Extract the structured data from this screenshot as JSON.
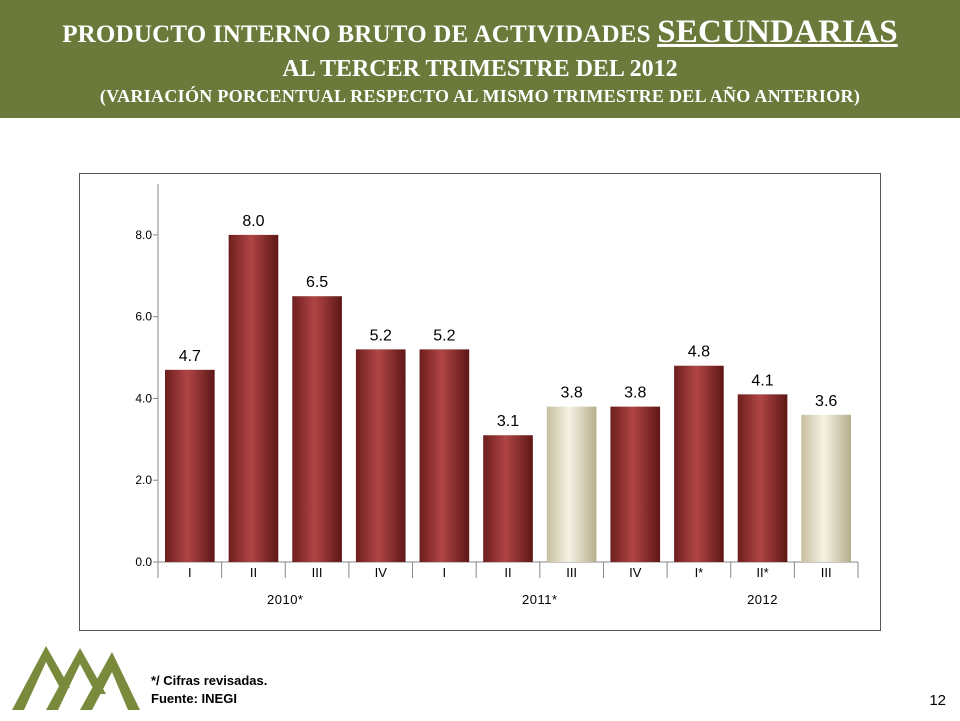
{
  "header": {
    "title_part1": "PRODUCTO INTERNO BRUTO DE  ACTIVIDADES ",
    "title_highlight": "SECUNDARIAS",
    "title_line2": "AL TERCER TRIMESTRE DEL 2012",
    "title_line3": "(VARIACIÓN PORCENTUAL RESPECTO AL MISMO TRIMESTRE DEL AÑO ANTERIOR)"
  },
  "chart_data": {
    "type": "bar",
    "title": "",
    "xlabel": "",
    "ylabel": "",
    "ylim": [
      0,
      9
    ],
    "yticks": [
      0,
      2,
      4,
      6,
      8
    ],
    "ytick_labels": [
      "0.0",
      "2.0",
      "4.0",
      "6.0",
      "8.0"
    ],
    "categories": [
      "I",
      "II",
      "III",
      "IV",
      "I",
      "II",
      "III",
      "IV",
      "I*",
      "II*",
      "III"
    ],
    "values": [
      4.7,
      8.0,
      6.5,
      5.2,
      5.2,
      3.1,
      3.8,
      3.8,
      4.8,
      4.1,
      3.6
    ],
    "value_labels": [
      "4.7",
      "8.0",
      "6.5",
      "5.2",
      "5.2",
      "3.1",
      "3.8",
      "3.8",
      "4.8",
      "4.1",
      "3.6"
    ],
    "highlighted": [
      false,
      false,
      false,
      false,
      false,
      false,
      true,
      false,
      false,
      false,
      true
    ],
    "groups": [
      {
        "label": "2010*",
        "start": 0,
        "end": 3
      },
      {
        "label": "2011*",
        "start": 4,
        "end": 7
      },
      {
        "label": "2012",
        "start": 8,
        "end": 10
      }
    ],
    "colors": {
      "bar": "#9b3232",
      "highlight": "#e6e1cd",
      "grid": "#888888"
    }
  },
  "footer": {
    "note1": "*/ Cifras revisadas.",
    "note2": "Fuente: INEGI",
    "page_number": "12"
  },
  "colors": {
    "banner": "#6b7a3a",
    "logo": "#7a8a3c"
  }
}
